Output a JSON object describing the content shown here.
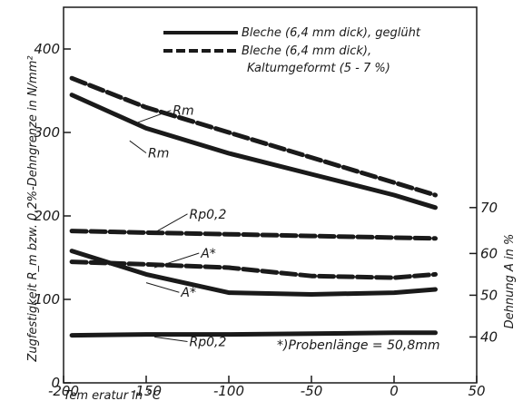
{
  "chart_data": {
    "type": "line",
    "xlabel": "Tem eratur in °C",
    "ylabel_left": "Zugfestigkeit R_m bzw. 0,2%-Dehngrenze in N/mm²",
    "ylabel_right": "Dehnung A in %",
    "xlim": [
      -200,
      50
    ],
    "ylim_left": [
      0,
      450
    ],
    "ylim_right_mapping": {
      "40": 55,
      "50": 105,
      "60": 155,
      "70": 210
    },
    "x_ticks": [
      "-200",
      "-150",
      "-100",
      "-50",
      "0",
      "50"
    ],
    "y_ticks_left": [
      "0",
      "100",
      "200",
      "300",
      "400"
    ],
    "y_ticks_right": [
      "40",
      "50",
      "60",
      "70"
    ],
    "legend": [
      {
        "label": "Bleche (6,4 mm dick), geglüht",
        "style": "solid"
      },
      {
        "label": "Bleche (6,4 mm dick),",
        "style": "dashed"
      }
    ],
    "legend_subline": "Kaltumgeformt (5 - 7 %)",
    "note": "*)Probenlänge = 50,8mm",
    "series": [
      {
        "name": "Rm",
        "style": "dashed",
        "x": [
          -195,
          -150,
          -100,
          -50,
          0,
          25
        ],
        "y": [
          365,
          330,
          300,
          270,
          240,
          225
        ]
      },
      {
        "name": "Rm",
        "style": "solid",
        "x": [
          -195,
          -150,
          -100,
          -50,
          0,
          25
        ],
        "y": [
          345,
          305,
          275,
          250,
          225,
          210
        ]
      },
      {
        "name": "Rp0,2",
        "style": "dashed",
        "x": [
          -195,
          -150,
          -100,
          -50,
          0,
          25
        ],
        "y": [
          182,
          180,
          178,
          176,
          174,
          173
        ]
      },
      {
        "name": "A",
        "style": "dashed",
        "x": [
          -195,
          -150,
          -100,
          -50,
          0,
          25
        ],
        "y": [
          145,
          142,
          138,
          128,
          126,
          130
        ]
      },
      {
        "name": "A",
        "style": "solid",
        "x": [
          -195,
          -150,
          -100,
          -50,
          0,
          25
        ],
        "y": [
          158,
          130,
          108,
          106,
          108,
          112
        ]
      },
      {
        "name": "Rp0,2",
        "style": "solid",
        "x": [
          -195,
          -150,
          -100,
          -50,
          0,
          25
        ],
        "y": [
          57,
          58,
          58,
          59,
          60,
          60
        ]
      }
    ],
    "labels": [
      "Rm",
      "Rm",
      "Rp0,2",
      "A*",
      "A*",
      "Rp0,2"
    ],
    "grid": false
  }
}
